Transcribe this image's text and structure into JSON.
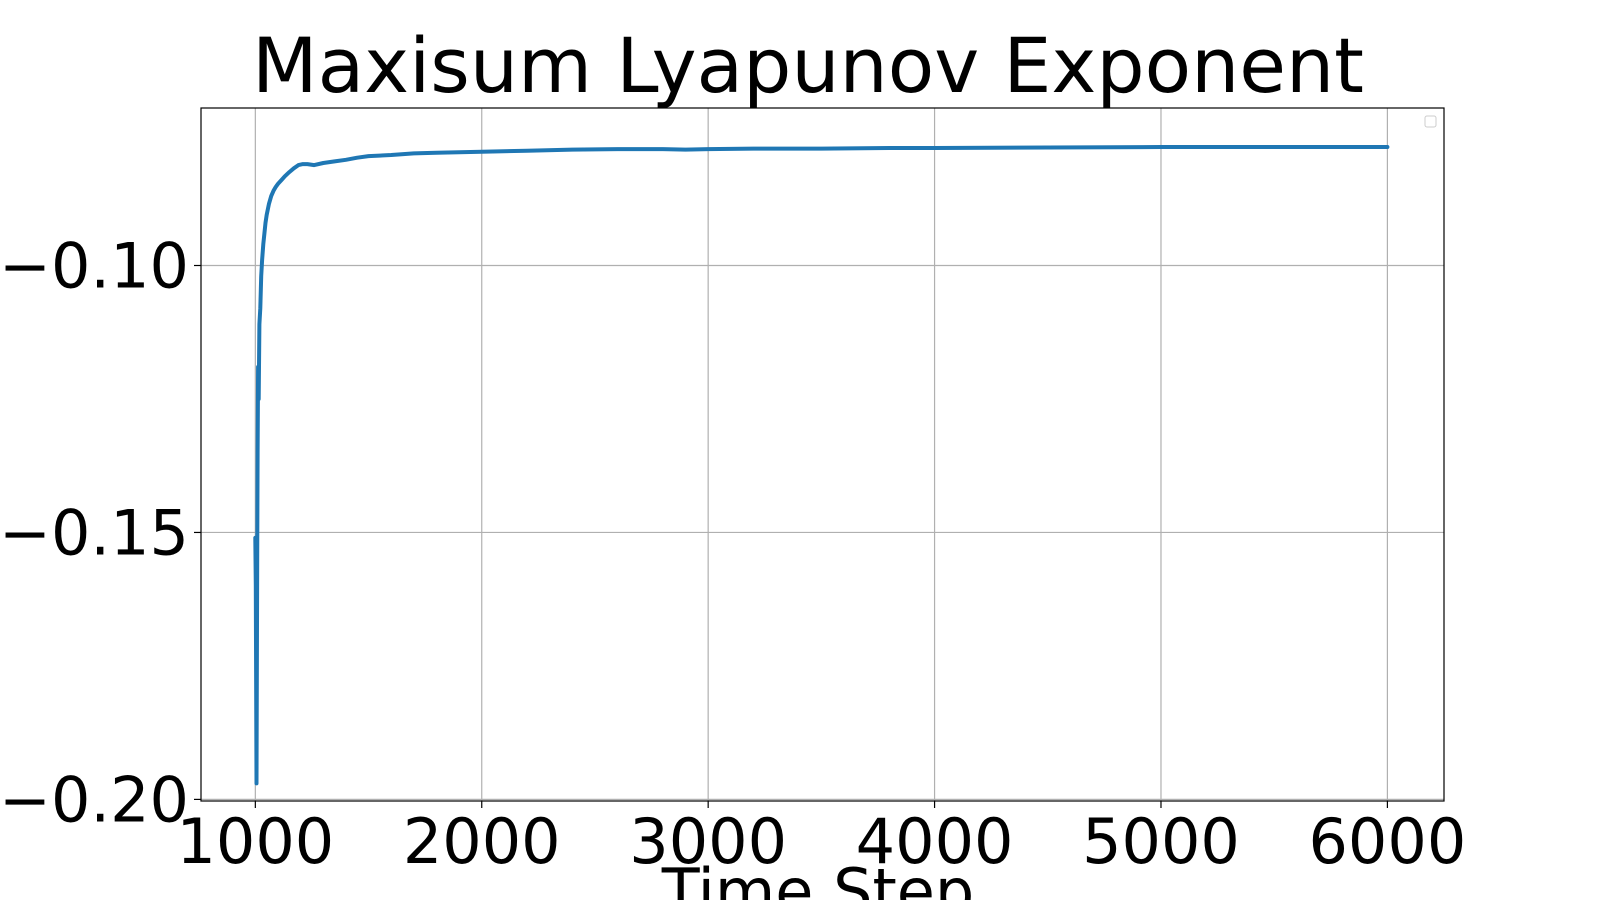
{
  "chart_data": {
    "type": "line",
    "title": "Maxisum Lyapunov Exponent",
    "xlabel": "Time Step",
    "ylabel": "",
    "xlim": [
      760,
      6250
    ],
    "ylim": [
      -0.2003,
      -0.0705
    ],
    "x_ticks": [
      1000,
      2000,
      3000,
      4000,
      5000,
      6000
    ],
    "x_tick_labels": [
      "1000",
      "2000",
      "3000",
      "4000",
      "5000",
      "6000"
    ],
    "y_ticks": [
      -0.1,
      -0.15,
      -0.2
    ],
    "y_tick_labels": [
      "−0.10",
      "−0.15",
      "−0.20"
    ],
    "grid": true,
    "legend": "top-right, empty",
    "series": [
      {
        "color": "#1f77b4",
        "x": [
          1000,
          1002,
          1005,
          1008,
          1010,
          1012,
          1015,
          1018,
          1022,
          1026,
          1030,
          1035,
          1040,
          1045,
          1050,
          1060,
          1070,
          1080,
          1090,
          1100,
          1115,
          1130,
          1150,
          1170,
          1190,
          1210,
          1230,
          1260,
          1300,
          1350,
          1400,
          1450,
          1500,
          1600,
          1700,
          1800,
          1900,
          2000,
          2200,
          2400,
          2600,
          2800,
          2900,
          3000,
          3200,
          3500,
          3800,
          4000,
          4500,
          5000,
          5500,
          6000
        ],
        "values": [
          -0.151,
          -0.16,
          -0.197,
          -0.155,
          -0.135,
          -0.119,
          -0.125,
          -0.111,
          -0.108,
          -0.102,
          -0.099,
          -0.096,
          -0.094,
          -0.092,
          -0.0905,
          -0.0885,
          -0.087,
          -0.086,
          -0.0853,
          -0.0847,
          -0.084,
          -0.0833,
          -0.0825,
          -0.0818,
          -0.0812,
          -0.081,
          -0.081,
          -0.0812,
          -0.0808,
          -0.0805,
          -0.0802,
          -0.0798,
          -0.0795,
          -0.0793,
          -0.079,
          -0.0789,
          -0.0788,
          -0.0787,
          -0.0785,
          -0.0783,
          -0.0782,
          -0.0782,
          -0.0783,
          -0.0782,
          -0.0781,
          -0.0781,
          -0.078,
          -0.078,
          -0.0779,
          -0.0778,
          -0.0778,
          -0.0778
        ]
      }
    ]
  }
}
